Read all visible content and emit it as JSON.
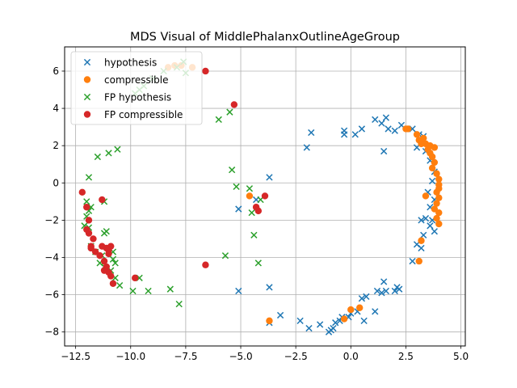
{
  "chart_data": {
    "type": "scatter",
    "title": "MDS Visual of MiddlePhalanxOutlineAgeGroup",
    "xlabel": "",
    "ylabel": "",
    "xlim": [
      -13.0,
      5.2
    ],
    "ylim": [
      -8.75,
      7.3
    ],
    "xticks": [
      -12.5,
      -10.0,
      -7.5,
      -5.0,
      -2.5,
      0.0,
      2.5,
      5.0
    ],
    "yticks": [
      -8,
      -6,
      -4,
      -2,
      0,
      2,
      4,
      6
    ],
    "xtick_labels": [
      "−12.5",
      "−10.0",
      "−7.5",
      "−5.0",
      "−2.5",
      "0.0",
      "2.5",
      "5.0"
    ],
    "ytick_labels": [
      "−8",
      "−6",
      "−4",
      "−2",
      "0",
      "2",
      "4",
      "6"
    ],
    "grid": true,
    "legend_position": "top-left",
    "series": [
      {
        "name": "hypothesis",
        "marker": "x",
        "color": "#1f77b4",
        "points": [
          [
            -2.0,
            1.9
          ],
          [
            -1.8,
            2.7
          ],
          [
            -0.3,
            2.8
          ],
          [
            -0.3,
            2.6
          ],
          [
            0.2,
            2.6
          ],
          [
            0.5,
            2.9
          ],
          [
            1.1,
            3.4
          ],
          [
            1.4,
            3.2
          ],
          [
            1.6,
            3.5
          ],
          [
            1.7,
            2.9
          ],
          [
            1.5,
            1.7
          ],
          [
            2.0,
            2.8
          ],
          [
            2.3,
            3.1
          ],
          [
            2.8,
            2.9
          ],
          [
            3.1,
            2.6
          ],
          [
            3.3,
            2.5
          ],
          [
            3.0,
            1.9
          ],
          [
            3.4,
            1.7
          ],
          [
            3.6,
            1.2
          ],
          [
            3.8,
            0.6
          ],
          [
            3.7,
            0.1
          ],
          [
            3.5,
            -0.5
          ],
          [
            3.8,
            -0.9
          ],
          [
            3.6,
            -1.3
          ],
          [
            3.4,
            -1.9
          ],
          [
            3.2,
            -2.0
          ],
          [
            3.7,
            -2.0
          ],
          [
            3.6,
            -2.3
          ],
          [
            3.8,
            -2.6
          ],
          [
            3.3,
            -2.8
          ],
          [
            3.0,
            -3.3
          ],
          [
            3.2,
            -3.5
          ],
          [
            2.8,
            -4.2
          ],
          [
            2.2,
            -5.7
          ],
          [
            2.1,
            -5.6
          ],
          [
            2.0,
            -5.8
          ],
          [
            1.5,
            -5.3
          ],
          [
            1.6,
            -5.8
          ],
          [
            1.4,
            -5.9
          ],
          [
            1.2,
            -5.8
          ],
          [
            1.1,
            -6.9
          ],
          [
            0.7,
            -6.1
          ],
          [
            0.5,
            -6.2
          ],
          [
            0.3,
            -6.9
          ],
          [
            0.6,
            -7.4
          ],
          [
            0.0,
            -7.0
          ],
          [
            -0.1,
            -7.2
          ],
          [
            -0.4,
            -7.2
          ],
          [
            -0.5,
            -7.4
          ],
          [
            -0.7,
            -7.5
          ],
          [
            -0.8,
            -7.8
          ],
          [
            -0.9,
            -7.9
          ],
          [
            -1.0,
            -8.0
          ],
          [
            -1.4,
            -7.6
          ],
          [
            -1.9,
            -7.8
          ],
          [
            -2.3,
            -7.4
          ],
          [
            -3.2,
            -7.1
          ],
          [
            -3.7,
            -7.5
          ],
          [
            -3.7,
            -5.6
          ],
          [
            -5.1,
            -5.8
          ],
          [
            -5.1,
            -1.4
          ],
          [
            -4.3,
            -0.9
          ],
          [
            -3.7,
            0.3
          ]
        ]
      },
      {
        "name": "compressible",
        "marker": "o",
        "color": "#ff7f0e",
        "points": [
          [
            -8.3,
            6.2
          ],
          [
            -8.0,
            6.3
          ],
          [
            -7.7,
            6.3
          ],
          [
            -7.2,
            6.2
          ],
          [
            2.6,
            2.9
          ],
          [
            3.0,
            2.6
          ],
          [
            3.1,
            2.3
          ],
          [
            3.2,
            2.1
          ],
          [
            3.3,
            2.4
          ],
          [
            3.4,
            2.1
          ],
          [
            3.5,
            1.8
          ],
          [
            3.6,
            1.6
          ],
          [
            3.7,
            1.4
          ],
          [
            3.8,
            1.1
          ],
          [
            3.7,
            0.8
          ],
          [
            3.9,
            0.5
          ],
          [
            4.0,
            0.2
          ],
          [
            4.0,
            -0.1
          ],
          [
            4.0,
            -0.3
          ],
          [
            3.9,
            -0.5
          ],
          [
            4.0,
            -0.8
          ],
          [
            3.9,
            -1.1
          ],
          [
            3.8,
            -1.4
          ],
          [
            4.0,
            -1.6
          ],
          [
            3.9,
            -1.9
          ],
          [
            4.0,
            -2.2
          ],
          [
            3.4,
            -0.7
          ],
          [
            3.2,
            -3.1
          ],
          [
            3.1,
            -4.2
          ],
          [
            2.5,
            2.9
          ],
          [
            3.6,
            2.0
          ],
          [
            3.8,
            1.9
          ],
          [
            -4.6,
            -0.7
          ],
          [
            -3.7,
            -7.4
          ],
          [
            0.0,
            -6.8
          ],
          [
            0.4,
            -6.7
          ],
          [
            -0.3,
            -7.3
          ]
        ]
      },
      {
        "name": "FP hypothesis",
        "marker": "x",
        "color": "#2ca02c",
        "points": [
          [
            -7.6,
            6.5
          ],
          [
            -7.9,
            6.2
          ],
          [
            -8.5,
            6.0
          ],
          [
            -9.0,
            5.6
          ],
          [
            -9.4,
            5.2
          ],
          [
            -9.6,
            5.0
          ],
          [
            -9.8,
            4.8
          ],
          [
            -7.5,
            5.9
          ],
          [
            -6.0,
            3.4
          ],
          [
            -5.5,
            3.8
          ],
          [
            -5.4,
            0.7
          ],
          [
            -5.2,
            -0.2
          ],
          [
            -4.6,
            -0.3
          ],
          [
            -4.5,
            -1.6
          ],
          [
            -4.1,
            -0.9
          ],
          [
            -4.4,
            -2.8
          ],
          [
            -4.2,
            -4.3
          ],
          [
            -5.7,
            -3.9
          ],
          [
            -7.8,
            -6.5
          ],
          [
            -8.2,
            -5.7
          ],
          [
            -9.2,
            -5.8
          ],
          [
            -9.6,
            -5.1
          ],
          [
            -9.9,
            -5.8
          ],
          [
            -10.5,
            -5.5
          ],
          [
            -10.7,
            -5.1
          ],
          [
            -10.9,
            -4.7
          ],
          [
            -11.2,
            -4.5
          ],
          [
            -11.4,
            -4.3
          ],
          [
            -11.6,
            -3.7
          ],
          [
            -11.8,
            -3.4
          ],
          [
            -11.1,
            -2.6
          ],
          [
            -11.9,
            -2.4
          ],
          [
            -12.1,
            -2.3
          ],
          [
            -12.0,
            -1.8
          ],
          [
            -11.9,
            -1.5
          ],
          [
            -11.8,
            -1.3
          ],
          [
            -12.0,
            -1.0
          ],
          [
            -11.2,
            -1.0
          ],
          [
            -11.2,
            -2.7
          ],
          [
            -10.8,
            -3.7
          ],
          [
            -10.8,
            -4.1
          ],
          [
            -10.7,
            -4.3
          ],
          [
            -11.3,
            -3.9
          ],
          [
            -11.9,
            0.3
          ],
          [
            -11.5,
            1.4
          ],
          [
            -11.0,
            1.6
          ],
          [
            -10.6,
            1.8
          ]
        ]
      },
      {
        "name": "FP compressible",
        "marker": "o",
        "color": "#d62728",
        "points": [
          [
            -6.6,
            6.0
          ],
          [
            -5.3,
            4.2
          ],
          [
            -3.9,
            -0.7
          ],
          [
            -4.3,
            -1.3
          ],
          [
            -4.2,
            -1.5
          ],
          [
            -6.6,
            -4.4
          ],
          [
            -9.8,
            -5.1
          ],
          [
            -12.2,
            -0.5
          ],
          [
            -11.3,
            -0.9
          ],
          [
            -12.0,
            -1.3
          ],
          [
            -11.9,
            -2.0
          ],
          [
            -12.0,
            -2.5
          ],
          [
            -11.9,
            -2.7
          ],
          [
            -11.7,
            -3.0
          ],
          [
            -11.8,
            -3.4
          ],
          [
            -11.6,
            -3.7
          ],
          [
            -11.4,
            -3.9
          ],
          [
            -11.3,
            -3.4
          ],
          [
            -11.1,
            -3.5
          ],
          [
            -10.9,
            -3.4
          ],
          [
            -11.0,
            -3.8
          ],
          [
            -11.2,
            -4.2
          ],
          [
            -11.1,
            -4.5
          ],
          [
            -11.2,
            -4.7
          ],
          [
            -11.0,
            -4.8
          ],
          [
            -10.9,
            -5.0
          ],
          [
            -10.8,
            -5.4
          ],
          [
            -11.0,
            -3.6
          ],
          [
            -11.8,
            -3.5
          ]
        ]
      }
    ]
  }
}
